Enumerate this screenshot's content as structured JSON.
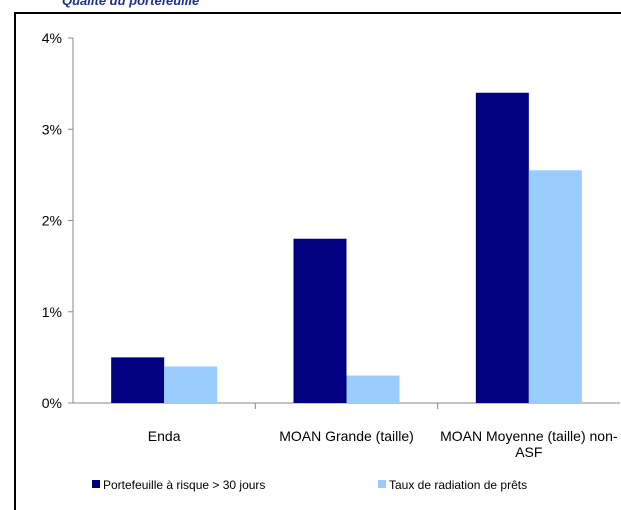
{
  "chart_data": {
    "type": "bar",
    "title": "Qualité du portefeuille",
    "categories": [
      "Enda",
      "MOAN Grande (taille)",
      "MOAN Moyenne (taille) non-ASF"
    ],
    "series": [
      {
        "name": "Portefeuille à risque > 30 jours",
        "color": "#000080",
        "values": [
          0.5,
          1.8,
          3.4
        ]
      },
      {
        "name": "Taux de radiation de prêts",
        "color": "#99ccff",
        "values": [
          0.4,
          0.3,
          2.55
        ]
      }
    ],
    "ylim": [
      0,
      4
    ],
    "yticks": [
      {
        "value": 0,
        "label": "0%"
      },
      {
        "value": 1,
        "label": "1%"
      },
      {
        "value": 2,
        "label": "2%"
      },
      {
        "value": 3,
        "label": "3%"
      },
      {
        "value": 4,
        "label": "4%"
      }
    ],
    "grid": false
  }
}
